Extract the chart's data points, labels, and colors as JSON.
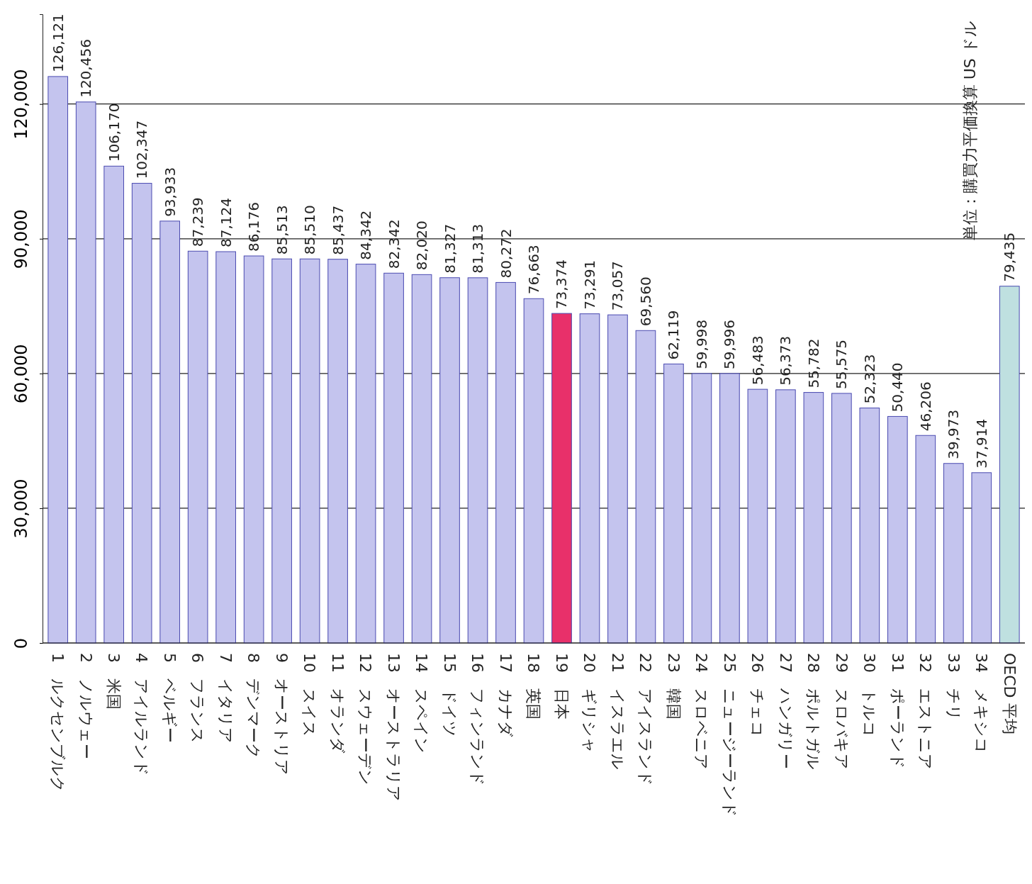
{
  "chart_data": {
    "type": "bar",
    "categories": [
      "1　ルクセンブルク",
      "2　ノルウェー",
      "3　米国",
      "4　アイルランド",
      "5　ベルギー",
      "6　フランス",
      "7　イタリア",
      "8　デンマーク",
      "9　オーストリア",
      "10　スイス",
      "11　オランダ",
      "12　スウェーデン",
      "13　オーストラリア",
      "14　スペイン",
      "15　ドイツ",
      "16　フィンランド",
      "17　カナダ",
      "18　英国",
      "19　日本",
      "20　ギリシャ",
      "21　イスラエル",
      "22　アイスランド",
      "23　韓国",
      "24　スロベニア",
      "25　ニュージーランド",
      "26　チェコ",
      "27　ハンガリー",
      "28　ポルトガル",
      "29　スロバキア",
      "30　トルコ",
      "31　ポーランド",
      "32　エストニア",
      "33　チリ",
      "34　メキシコ",
      "OECD 平均"
    ],
    "values": [
      126121,
      120456,
      106170,
      102347,
      93933,
      87239,
      87124,
      86176,
      85513,
      85510,
      85437,
      84342,
      82342,
      82020,
      81327,
      81313,
      80272,
      76663,
      73374,
      73291,
      73057,
      69560,
      62119,
      59998,
      59996,
      56483,
      56373,
      55782,
      55575,
      52323,
      50440,
      46206,
      39973,
      37914,
      79435
    ],
    "colors": [
      "#c4c4ee",
      "#c4c4ee",
      "#c4c4ee",
      "#c4c4ee",
      "#c4c4ee",
      "#c4c4ee",
      "#c4c4ee",
      "#c4c4ee",
      "#c4c4ee",
      "#c4c4ee",
      "#c4c4ee",
      "#c4c4ee",
      "#c4c4ee",
      "#c4c4ee",
      "#c4c4ee",
      "#c4c4ee",
      "#c4c4ee",
      "#c4c4ee",
      "#e8306a",
      "#c4c4ee",
      "#c4c4ee",
      "#c4c4ee",
      "#c4c4ee",
      "#c4c4ee",
      "#c4c4ee",
      "#c4c4ee",
      "#c4c4ee",
      "#c4c4ee",
      "#c4c4ee",
      "#c4c4ee",
      "#c4c4ee",
      "#c4c4ee",
      "#c4c4ee",
      "#c4c4ee",
      "#bfe0e0"
    ],
    "ylim": [
      0,
      140000
    ],
    "yticks": [
      0,
      {
        "value": 30000,
        "label": "30,000"
      },
      {
        "value": 60000,
        "label": "60,000"
      },
      {
        "value": 90000,
        "label": "90,000"
      },
      {
        "value": 120000,
        "label": "120,000"
      }
    ],
    "grid": "y",
    "value_labels": [
      "126,121",
      "120,456",
      "106,170",
      "102,347",
      "93,933",
      "87,239",
      "87,124",
      "86,176",
      "85,513",
      "85,510",
      "85,437",
      "84,342",
      "82,342",
      "82,020",
      "81,327",
      "81,313",
      "80,272",
      "76,663",
      "73,374",
      "73,291",
      "73,057",
      "69,560",
      "62,119",
      "59,998",
      "59,996",
      "56,483",
      "56,373",
      "55,782",
      "55,575",
      "52,323",
      "50,440",
      "46,206",
      "39,973",
      "37,914",
      "79,435"
    ],
    "annotations": [
      "単位：購買力平価換算 US ドル"
    ]
  }
}
